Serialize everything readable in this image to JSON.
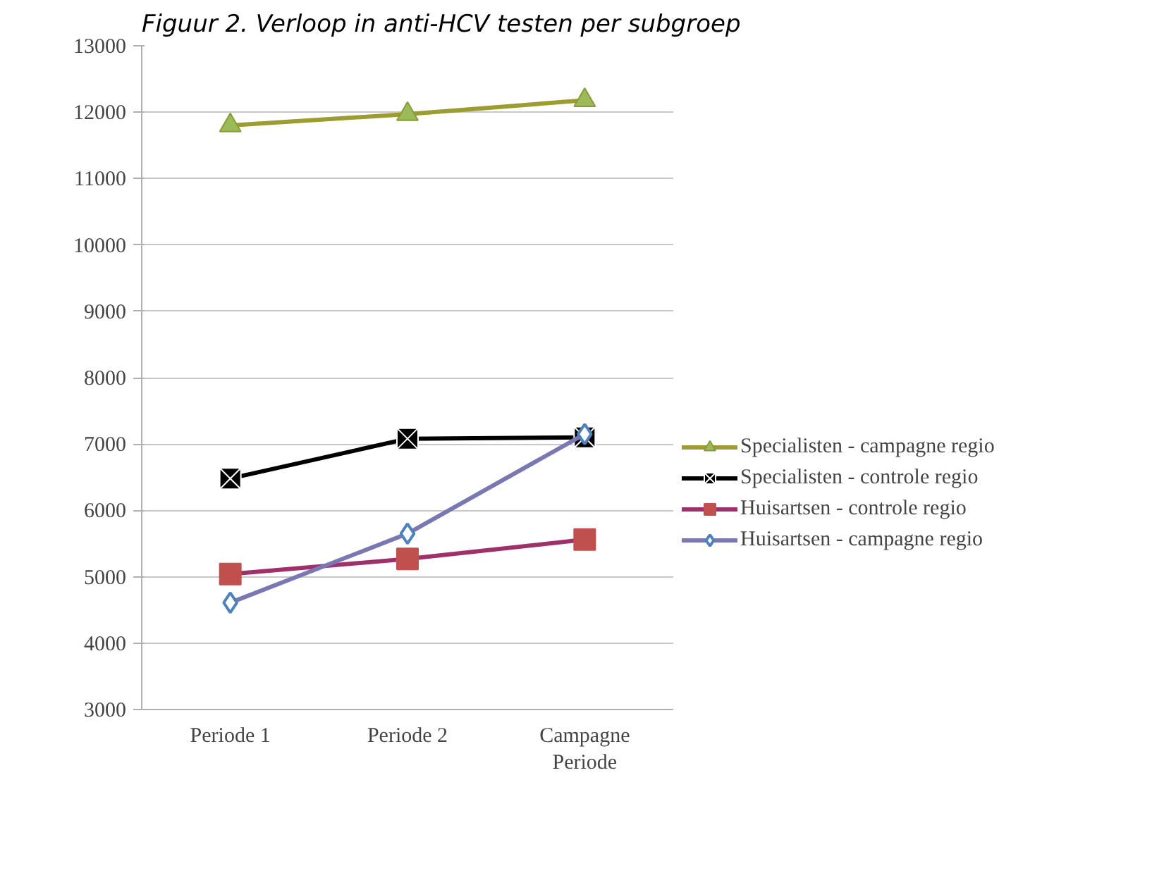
{
  "chart_data": {
    "type": "line",
    "title": "Figuur 2. Verloop in anti-HCV testen per subgroep",
    "categories": [
      "Periode 1",
      "Periode 2",
      "Campagne\nPeriode"
    ],
    "series": [
      {
        "name": "Specialisten - campagne regio",
        "color": "#9c9c30",
        "marker": "triangle",
        "values": [
          11800,
          11970,
          12180
        ]
      },
      {
        "name": "Specialisten - controle regio",
        "color": "#000000",
        "marker": "cross",
        "values": [
          6480,
          7080,
          7100
        ]
      },
      {
        "name": "Huisartsen - controle regio",
        "color": "#a0306a",
        "marker": "square",
        "values": [
          5040,
          5270,
          5560
        ]
      },
      {
        "name": "Huisartsen - campagne regio",
        "color": "#7a78b2",
        "marker": "diamond",
        "values": [
          4610,
          5650,
          7150
        ]
      }
    ],
    "ylim": [
      3000,
      13000
    ],
    "yticks": [
      3000,
      4000,
      5000,
      6000,
      7000,
      8000,
      9000,
      10000,
      11000,
      12000,
      13000
    ],
    "grid": "y",
    "legend": "right"
  }
}
